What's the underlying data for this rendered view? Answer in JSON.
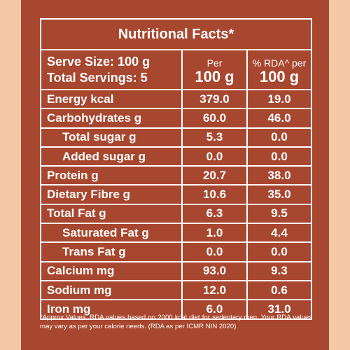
{
  "title": "Nutritional Facts*",
  "header": {
    "serve_size": "Serve Size: 100 g",
    "total_servings": "Total Servings: 5",
    "per_label": "Per",
    "per_value": "100 g",
    "rda_label": "% RDA^ per",
    "rda_value": "100 g"
  },
  "rows": [
    {
      "name": "Energy kcal",
      "per": "379.0",
      "rda": "19.0"
    },
    {
      "name": "Carbohydrates g",
      "per": "60.0",
      "rda": "46.0"
    },
    {
      "name": "Total sugar g",
      "per": "5.3",
      "rda": "0.0"
    },
    {
      "name": "Added sugar g",
      "per": "0.0",
      "rda": "0.0"
    },
    {
      "name": "Protein g",
      "per": "20.7",
      "rda": "38.0"
    },
    {
      "name": "Dietary Fibre g",
      "per": "10.6",
      "rda": "35.0"
    },
    {
      "name": "Total Fat g",
      "per": "6.3",
      "rda": "9.5"
    },
    {
      "name": "Saturated Fat g",
      "per": "1.0",
      "rda": "4.4"
    },
    {
      "name": "Trans Fat g",
      "per": "0.0",
      "rda": "0.0"
    },
    {
      "name": "Calcium mg",
      "per": "93.0",
      "rda": "9.3"
    },
    {
      "name": "Sodium mg",
      "per": "12.0",
      "rda": "0.6"
    },
    {
      "name": "Iron mg",
      "per": "6.0",
      "rda": "31.0"
    }
  ],
  "footnote": "*Approx.Values. RDA values based on 2000 kcal diet for sedentary men. Your RDA values may vary as per your calorie needs. (RDA as per ICMR NIN 2020)",
  "colors": {
    "panel": "#a8472f",
    "background": "#f6c9a6",
    "text": "#ffffff"
  }
}
